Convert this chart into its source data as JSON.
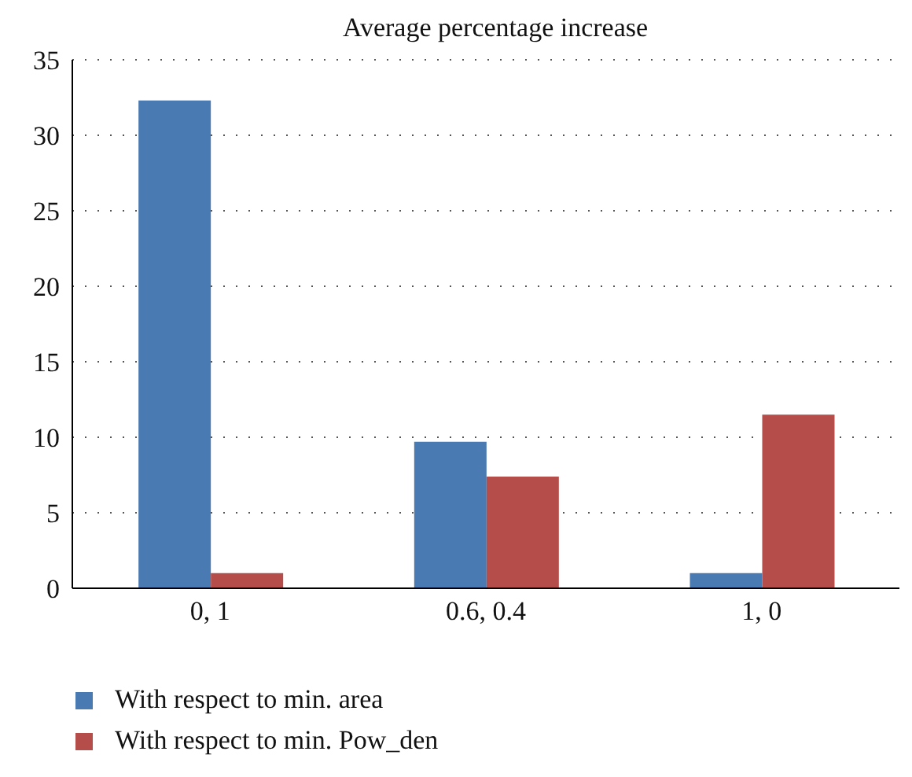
{
  "chart_data": {
    "type": "bar",
    "title": "Average percentage increase",
    "categories": [
      "0, 1",
      "0.6, 0.4",
      "1, 0"
    ],
    "series": [
      {
        "name": "With respect to min. area",
        "color": "#4a7ab2",
        "values": [
          32.3,
          9.7,
          1.0
        ]
      },
      {
        "name": "With respect to min. Pow_den",
        "color": "#b54e4b",
        "values": [
          1.0,
          7.4,
          11.5
        ]
      }
    ],
    "ylim": [
      0,
      35
    ],
    "yticks": [
      0,
      5,
      10,
      15,
      20,
      25,
      30,
      35
    ],
    "grid": "y",
    "legend": "bottom left"
  }
}
